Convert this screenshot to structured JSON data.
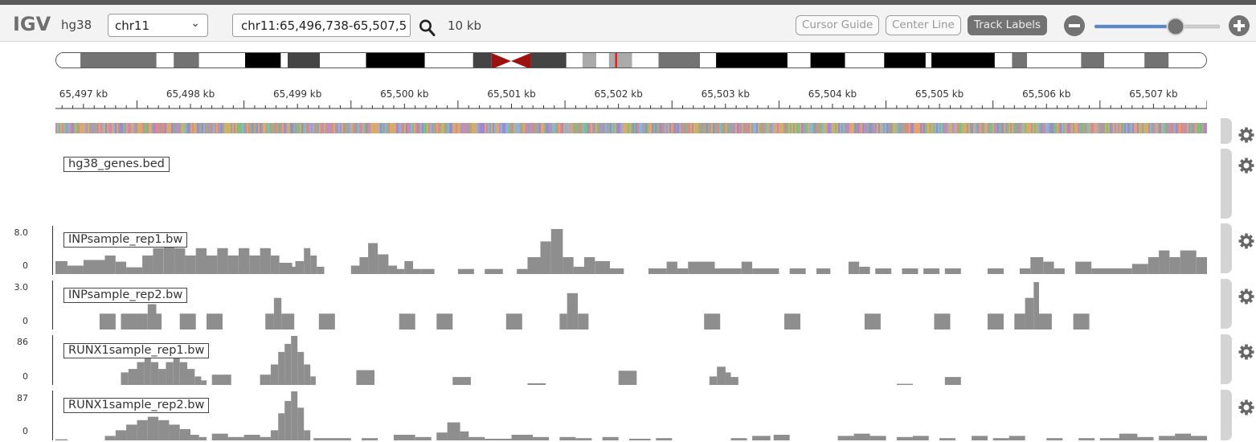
{
  "app": {
    "logo": "IGV",
    "genome": "hg38",
    "chromosome": "chr11",
    "locus": "chr11:65,496,738-65,507,5",
    "span": "10 kb",
    "buttons": {
      "cursor_guide": "Cursor Guide",
      "center_line": "Center Line",
      "track_labels": "Track Labels"
    },
    "zoom_level_fraction": 0.65
  },
  "colors": {
    "accent": "#5b89c8",
    "coverage": "#8e8e8e",
    "centromere": "#9e1111",
    "current_region": "#e02222"
  },
  "ideogram": {
    "bands": [
      {
        "start": 0.0,
        "end": 0.021,
        "shade": "#ffffff"
      },
      {
        "start": 0.021,
        "end": 0.087,
        "shade": "#737373"
      },
      {
        "start": 0.087,
        "end": 0.102,
        "shade": "#ffffff"
      },
      {
        "start": 0.102,
        "end": 0.124,
        "shade": "#737373"
      },
      {
        "start": 0.124,
        "end": 0.164,
        "shade": "#ffffff"
      },
      {
        "start": 0.164,
        "end": 0.195,
        "shade": "#000000"
      },
      {
        "start": 0.195,
        "end": 0.201,
        "shade": "#ffffff"
      },
      {
        "start": 0.201,
        "end": 0.229,
        "shade": "#444444"
      },
      {
        "start": 0.229,
        "end": 0.269,
        "shade": "#ffffff"
      },
      {
        "start": 0.269,
        "end": 0.32,
        "shade": "#000000"
      },
      {
        "start": 0.32,
        "end": 0.362,
        "shade": "#ffffff"
      },
      {
        "start": 0.362,
        "end": 0.378,
        "shade": "#444444"
      },
      {
        "start": 0.412,
        "end": 0.443,
        "shade": "#444444"
      },
      {
        "start": 0.443,
        "end": 0.457,
        "shade": "#ffffff"
      },
      {
        "start": 0.457,
        "end": 0.469,
        "shade": "#aaaaaa"
      },
      {
        "start": 0.469,
        "end": 0.48,
        "shade": "#ffffff"
      },
      {
        "start": 0.48,
        "end": 0.5,
        "shade": "#aaaaaa"
      },
      {
        "start": 0.5,
        "end": 0.523,
        "shade": "#ffffff"
      },
      {
        "start": 0.523,
        "end": 0.559,
        "shade": "#737373"
      },
      {
        "start": 0.559,
        "end": 0.573,
        "shade": "#ffffff"
      },
      {
        "start": 0.573,
        "end": 0.635,
        "shade": "#000000"
      },
      {
        "start": 0.635,
        "end": 0.655,
        "shade": "#ffffff"
      },
      {
        "start": 0.655,
        "end": 0.685,
        "shade": "#000000"
      },
      {
        "start": 0.685,
        "end": 0.719,
        "shade": "#ffffff"
      },
      {
        "start": 0.719,
        "end": 0.755,
        "shade": "#000000"
      },
      {
        "start": 0.755,
        "end": 0.76,
        "shade": "#ffffff"
      },
      {
        "start": 0.76,
        "end": 0.815,
        "shade": "#000000"
      },
      {
        "start": 0.815,
        "end": 0.83,
        "shade": "#ffffff"
      },
      {
        "start": 0.83,
        "end": 0.843,
        "shade": "#737373"
      },
      {
        "start": 0.843,
        "end": 0.89,
        "shade": "#ffffff"
      },
      {
        "start": 0.89,
        "end": 0.91,
        "shade": "#737373"
      },
      {
        "start": 0.91,
        "end": 0.945,
        "shade": "#ffffff"
      },
      {
        "start": 0.945,
        "end": 0.966,
        "shade": "#737373"
      },
      {
        "start": 0.966,
        "end": 1.0,
        "shade": "#ffffff"
      }
    ],
    "centromere": {
      "start": 0.378,
      "end": 0.412
    },
    "current_region": 0.486
  },
  "ruler": {
    "start_kb": 65496.738,
    "end_kb": 65507.5,
    "ticks": [
      {
        "kb": 65497,
        "label": "65,497 kb"
      },
      {
        "kb": 65498,
        "label": "65,498 kb"
      },
      {
        "kb": 65499,
        "label": "65,499 kb"
      },
      {
        "kb": 65500,
        "label": "65,500 kb"
      },
      {
        "kb": 65501,
        "label": "65,501 kb"
      },
      {
        "kb": 65502,
        "label": "65,502 kb"
      },
      {
        "kb": 65503,
        "label": "65,503 kb"
      },
      {
        "kb": 65504,
        "label": "65,504 kb"
      },
      {
        "kb": 65505,
        "label": "65,505 kb"
      },
      {
        "kb": 65506,
        "label": "65,506 kb"
      },
      {
        "kb": 65507,
        "label": "65,507 kb"
      }
    ]
  },
  "tracks": {
    "genes": {
      "name": "hg38_genes.bed"
    },
    "inp1": {
      "name": "INPsample_rep1.bw",
      "max_label": "8.0",
      "min_label": "0",
      "max": 8.0,
      "bins": [
        [
          65496.738,
          65496.85,
          2.3
        ],
        [
          65496.85,
          65497.0,
          1.5
        ],
        [
          65497.0,
          65497.2,
          2.5
        ],
        [
          65497.2,
          65497.3,
          3.3
        ],
        [
          65497.3,
          65497.4,
          2.2
        ],
        [
          65497.4,
          65497.55,
          1.2
        ],
        [
          65497.55,
          65497.65,
          3.3
        ],
        [
          65497.65,
          65497.75,
          4.6
        ],
        [
          65497.75,
          65497.85,
          6.2
        ],
        [
          65497.85,
          65497.95,
          4.6
        ],
        [
          65497.95,
          65498.05,
          3.3
        ],
        [
          65498.05,
          65498.15,
          4.6
        ],
        [
          65498.15,
          65498.25,
          3.3
        ],
        [
          65498.25,
          65498.35,
          4.6
        ],
        [
          65498.35,
          65498.45,
          3.3
        ],
        [
          65498.45,
          65498.55,
          4.6
        ],
        [
          65498.55,
          65498.65,
          3.3
        ],
        [
          65498.65,
          65498.75,
          4.6
        ],
        [
          65498.75,
          65498.83,
          3.3
        ],
        [
          65498.83,
          65498.95,
          2.0
        ],
        [
          65498.95,
          65499.1,
          0.0
        ],
        [
          65498.88,
          65498.98,
          1.3
        ],
        [
          65498.98,
          65499.06,
          2.3
        ],
        [
          65499.06,
          65499.12,
          4.6
        ],
        [
          65499.12,
          65499.18,
          3.3
        ],
        [
          65499.18,
          65499.25,
          1.3
        ],
        [
          65499.5,
          65499.58,
          1.5
        ],
        [
          65499.58,
          65499.66,
          3.0
        ],
        [
          65499.66,
          65499.75,
          5.5
        ],
        [
          65499.75,
          65499.85,
          3.5
        ],
        [
          65499.85,
          65499.93,
          1.5
        ],
        [
          65499.93,
          65500.0,
          0.9
        ],
        [
          65500.0,
          65500.08,
          2.3
        ],
        [
          65500.08,
          65500.15,
          0.9
        ],
        [
          65500.15,
          65500.28,
          0.9
        ],
        [
          65500.5,
          65500.65,
          0.9
        ],
        [
          65500.75,
          65500.92,
          0.9
        ],
        [
          65501.05,
          65501.15,
          0.9
        ],
        [
          65501.15,
          65501.27,
          3.0
        ],
        [
          65501.27,
          65501.37,
          5.8
        ],
        [
          65501.37,
          65501.48,
          8.0
        ],
        [
          65501.48,
          65501.58,
          3.0
        ],
        [
          65501.58,
          65501.68,
          1.3
        ],
        [
          65501.68,
          65501.78,
          3.0
        ],
        [
          65501.78,
          65501.92,
          2.3
        ],
        [
          65501.92,
          65502.05,
          1.0
        ],
        [
          65502.28,
          65502.45,
          1.0
        ],
        [
          65502.45,
          65502.55,
          2.2
        ],
        [
          65502.55,
          65502.65,
          1.0
        ],
        [
          65502.65,
          65502.75,
          2.2
        ],
        [
          65502.75,
          65502.9,
          2.2
        ],
        [
          65502.9,
          65503.15,
          1.0
        ],
        [
          65503.15,
          65503.25,
          2.2
        ],
        [
          65503.25,
          65503.5,
          1.0
        ],
        [
          65503.6,
          65503.75,
          1.0
        ],
        [
          65503.85,
          65503.98,
          1.0
        ],
        [
          65504.15,
          65504.25,
          2.2
        ],
        [
          65504.25,
          65504.35,
          1.3
        ],
        [
          65504.4,
          65504.55,
          1.0
        ],
        [
          65504.65,
          65504.8,
          1.0
        ],
        [
          65504.85,
          65505.0,
          1.0
        ],
        [
          65505.05,
          65505.2,
          1.0
        ],
        [
          65505.45,
          65505.6,
          1.0
        ],
        [
          65505.75,
          65505.85,
          1.0
        ],
        [
          65505.85,
          65505.97,
          3.0
        ],
        [
          65505.97,
          65506.07,
          2.2
        ],
        [
          65506.07,
          65506.17,
          1.0
        ],
        [
          65506.27,
          65506.42,
          2.2
        ],
        [
          65506.42,
          65506.8,
          1.0
        ],
        [
          65506.8,
          65506.95,
          1.8
        ],
        [
          65506.95,
          65507.05,
          3.0
        ],
        [
          65507.05,
          65507.15,
          4.2
        ],
        [
          65507.15,
          65507.25,
          3.0
        ],
        [
          65507.25,
          65507.4,
          4.2
        ],
        [
          65507.4,
          65507.55,
          3.0
        ],
        [
          65507.55,
          65507.65,
          2.2
        ],
        [
          65507.65,
          65507.75,
          1.0
        ]
      ]
    },
    "inp2": {
      "name": "INPsample_rep2.bw",
      "max_label": "3.0",
      "min_label": "0",
      "max": 3.0,
      "bins": [
        [
          65497.15,
          65497.3,
          1.0
        ],
        [
          65497.35,
          65497.5,
          1.0
        ],
        [
          65497.5,
          65497.6,
          1.0
        ],
        [
          65497.6,
          65497.68,
          1.6
        ],
        [
          65497.68,
          65497.73,
          1.0
        ],
        [
          65497.9,
          65498.05,
          1.0
        ],
        [
          65498.15,
          65498.3,
          1.0
        ],
        [
          65498.7,
          65498.78,
          1.0
        ],
        [
          65498.78,
          65498.85,
          2.0
        ],
        [
          65498.85,
          65498.97,
          1.0
        ],
        [
          65499.2,
          65499.35,
          1.0
        ],
        [
          65499.95,
          65500.1,
          1.0
        ],
        [
          65500.3,
          65500.45,
          1.0
        ],
        [
          65500.95,
          65501.1,
          1.0
        ],
        [
          65501.45,
          65501.52,
          1.0
        ],
        [
          65501.52,
          65501.62,
          2.3
        ],
        [
          65501.62,
          65501.72,
          1.0
        ],
        [
          65502.8,
          65502.95,
          1.0
        ],
        [
          65503.55,
          65503.7,
          1.0
        ],
        [
          65504.3,
          65504.45,
          1.0
        ],
        [
          65504.95,
          65505.1,
          1.0
        ],
        [
          65505.45,
          65505.6,
          1.0
        ],
        [
          65505.7,
          65505.8,
          1.0
        ],
        [
          65505.8,
          65505.88,
          2.0
        ],
        [
          65505.88,
          65505.93,
          3.0
        ],
        [
          65505.93,
          65506.05,
          1.0
        ],
        [
          65506.25,
          65506.4,
          1.0
        ]
      ]
    },
    "runx1_1": {
      "name": "RUNX1sample_rep1.bw",
      "max_label": "86",
      "min_label": "0",
      "max": 86,
      "bins": [
        [
          65497.35,
          65497.42,
          22
        ],
        [
          65497.42,
          65497.5,
          28
        ],
        [
          65497.5,
          65497.57,
          40
        ],
        [
          65497.57,
          65497.63,
          56
        ],
        [
          65497.63,
          65497.7,
          40
        ],
        [
          65497.7,
          65497.77,
          28
        ],
        [
          65497.77,
          65497.84,
          40
        ],
        [
          65497.84,
          65497.9,
          56
        ],
        [
          65497.9,
          65497.97,
          40
        ],
        [
          65497.97,
          65498.04,
          28
        ],
        [
          65498.04,
          65498.1,
          15
        ],
        [
          65498.1,
          65498.15,
          8
        ],
        [
          65498.2,
          65498.38,
          18
        ],
        [
          65498.65,
          65498.75,
          18
        ],
        [
          65498.75,
          65498.82,
          36
        ],
        [
          65498.82,
          65498.88,
          58
        ],
        [
          65498.88,
          65498.94,
          72
        ],
        [
          65498.94,
          65499.0,
          86
        ],
        [
          65499.0,
          65499.06,
          58
        ],
        [
          65499.06,
          65499.12,
          36
        ],
        [
          65499.12,
          65499.17,
          15
        ],
        [
          65499.55,
          65499.72,
          26
        ],
        [
          65500.45,
          65500.62,
          14
        ],
        [
          65501.15,
          65501.32,
          3
        ],
        [
          65502.0,
          65502.17,
          25
        ],
        [
          65502.85,
          65502.92,
          15
        ],
        [
          65502.92,
          65503.0,
          32
        ],
        [
          65503.0,
          65503.05,
          22
        ],
        [
          65503.05,
          65503.12,
          14
        ],
        [
          65504.6,
          65504.75,
          2
        ],
        [
          65505.05,
          65505.2,
          14
        ]
      ]
    },
    "runx1_2": {
      "name": "RUNX1sample_rep2.bw",
      "max_label": "87",
      "min_label": "0",
      "max": 87,
      "bins": [
        [
          65496.738,
          65496.85,
          2
        ],
        [
          65497.2,
          65497.3,
          8
        ],
        [
          65497.3,
          65497.4,
          18
        ],
        [
          65497.4,
          65497.5,
          28
        ],
        [
          65497.5,
          65497.6,
          36
        ],
        [
          65497.6,
          65497.7,
          42
        ],
        [
          65497.7,
          65497.8,
          36
        ],
        [
          65497.8,
          65497.9,
          28
        ],
        [
          65497.9,
          65498.0,
          20
        ],
        [
          65498.0,
          65498.08,
          10
        ],
        [
          65498.08,
          65498.15,
          6
        ],
        [
          65498.2,
          65498.35,
          12
        ],
        [
          65498.35,
          65498.5,
          6
        ],
        [
          65498.5,
          65498.65,
          10
        ],
        [
          65498.65,
          65498.75,
          6
        ],
        [
          65498.75,
          65498.82,
          18
        ],
        [
          65498.82,
          65498.88,
          48
        ],
        [
          65498.88,
          65498.94,
          70
        ],
        [
          65498.94,
          65499.0,
          87
        ],
        [
          65499.0,
          65499.06,
          58
        ],
        [
          65499.06,
          65499.12,
          18
        ],
        [
          65499.15,
          65499.5,
          4
        ],
        [
          65499.6,
          65499.75,
          4
        ],
        [
          65499.9,
          65500.1,
          10
        ],
        [
          65500.1,
          65500.25,
          6
        ],
        [
          65500.3,
          65500.4,
          14
        ],
        [
          65500.4,
          65500.52,
          32
        ],
        [
          65500.52,
          65500.6,
          16
        ],
        [
          65500.6,
          65500.75,
          6
        ],
        [
          65500.75,
          65501.0,
          3
        ],
        [
          65501.0,
          65501.2,
          10
        ],
        [
          65501.2,
          65501.35,
          6
        ],
        [
          65501.45,
          65501.6,
          6
        ],
        [
          65501.6,
          65501.75,
          4
        ],
        [
          65501.85,
          65502.0,
          6
        ],
        [
          65502.1,
          65502.3,
          3
        ],
        [
          65502.35,
          65502.5,
          4
        ],
        [
          65503.05,
          65503.2,
          4
        ],
        [
          65503.25,
          65503.42,
          8
        ],
        [
          65503.45,
          65503.6,
          10
        ],
        [
          65504.05,
          65504.2,
          8
        ],
        [
          65504.2,
          65504.35,
          12
        ],
        [
          65504.35,
          65504.5,
          8
        ],
        [
          65504.6,
          65504.75,
          6
        ],
        [
          65504.75,
          65504.9,
          8
        ],
        [
          65505.0,
          65505.15,
          4
        ],
        [
          65505.3,
          65505.45,
          8
        ],
        [
          65505.5,
          65505.65,
          4
        ],
        [
          65505.65,
          65505.8,
          8
        ],
        [
          65506.0,
          65506.15,
          4
        ],
        [
          65506.3,
          65506.45,
          4
        ],
        [
          65506.5,
          65506.68,
          4
        ],
        [
          65506.68,
          65506.85,
          12
        ],
        [
          65506.85,
          65507.0,
          6
        ],
        [
          65507.05,
          65507.2,
          8
        ],
        [
          65507.2,
          65507.35,
          12
        ],
        [
          65507.35,
          65507.5,
          8
        ]
      ]
    }
  }
}
